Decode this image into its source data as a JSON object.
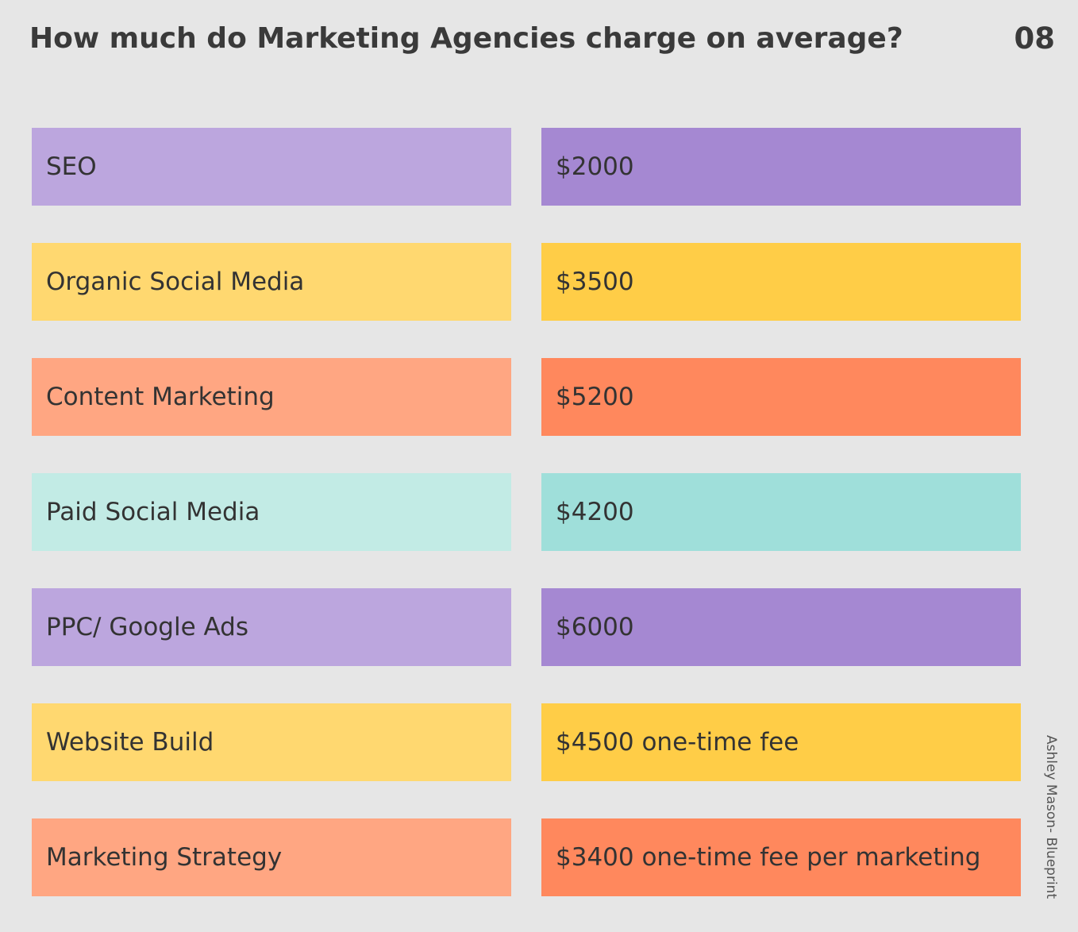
{
  "title": "How much do Marketing Agencies charge on average?",
  "page_number": "08",
  "credit": "Ashley Mason- Blueprint",
  "colors": {
    "background": "#e6e6e6",
    "purple_light": "#bca6de",
    "purple_dark": "#a588d2",
    "yellow_light": "#ffd870",
    "yellow_dark": "#ffcd47",
    "orange_light": "#ffa682",
    "orange_dark": "#ff885d",
    "teal_light": "#c2ebe5",
    "teal_dark": "#9fdfda"
  },
  "rows": [
    {
      "service": "SEO",
      "price": "$2000",
      "label_color": "#bca6de",
      "value_color": "#a588d2"
    },
    {
      "service": "Organic Social Media",
      "price": "$3500",
      "label_color": "#ffd870",
      "value_color": "#ffcd47"
    },
    {
      "service": "Content Marketing",
      "price": "$5200",
      "label_color": "#ffa682",
      "value_color": "#ff885d"
    },
    {
      "service": "Paid Social Media",
      "price": "$4200",
      "label_color": "#c2ebe5",
      "value_color": "#9fdfda"
    },
    {
      "service": "PPC/ Google Ads",
      "price": "$6000",
      "label_color": "#bca6de",
      "value_color": "#a588d2"
    },
    {
      "service": "Website Build",
      "price": "$4500 one-time fee",
      "label_color": "#ffd870",
      "value_color": "#ffcd47"
    },
    {
      "service": "Marketing Strategy",
      "price": "$3400 one-time fee per marketing",
      "label_color": "#ffa682",
      "value_color": "#ff885d"
    }
  ]
}
